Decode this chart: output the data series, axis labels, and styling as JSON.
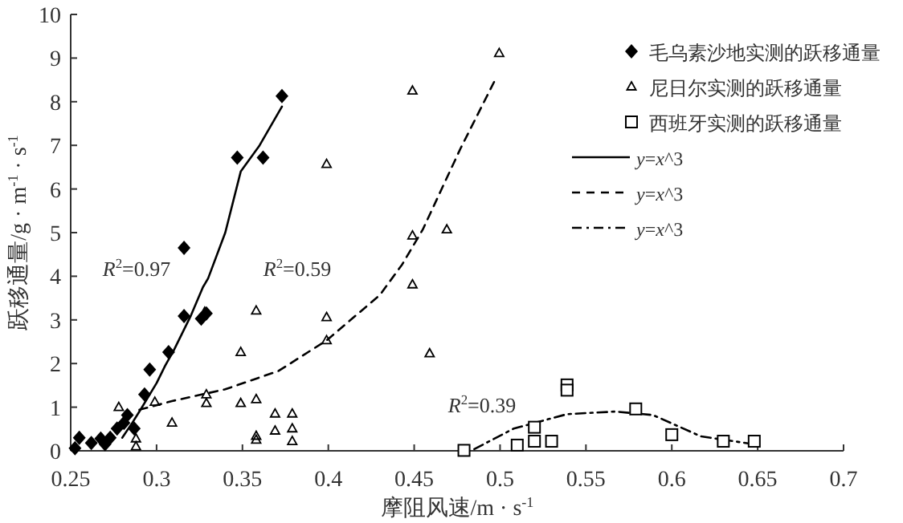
{
  "chart_data": {
    "type": "scatter",
    "xlabel": "摩阻风速/m · s$^{-1}$",
    "ylabel": "跃移通量/g · m$^{-1}$ · s$^{-1}$",
    "xlim": [
      0.25,
      0.7
    ],
    "ylim": [
      0,
      10
    ],
    "xticks": [
      0.25,
      0.3,
      0.35,
      0.4,
      0.45,
      0.5,
      0.55,
      0.6,
      0.65,
      0.7
    ],
    "yticks": [
      0,
      1,
      2,
      3,
      4,
      5,
      6,
      7,
      8,
      9,
      10
    ],
    "legend": "top right",
    "grid": false,
    "annotations": [
      "*R*$^{2}$=0.97",
      "*R*$^{2}$=0.59",
      "*R*$^{2}$=0.39"
    ],
    "series": [
      {
        "name": "毛乌素沙地实测的跃移通量",
        "type": "scatter",
        "marker": "diamond",
        "color": "#000000",
        "x": [
          0.2525,
          0.255,
          0.262,
          0.2675,
          0.27,
          0.273,
          0.277,
          0.281,
          0.283,
          0.287,
          0.293,
          0.296,
          0.307,
          0.316,
          0.326,
          0.329,
          0.316,
          0.347,
          0.362,
          0.373
        ],
        "values": [
          0.06,
          0.3,
          0.18,
          0.28,
          0.15,
          0.3,
          0.51,
          0.64,
          0.82,
          0.51,
          1.29,
          1.86,
          2.26,
          3.09,
          3.03,
          3.15,
          4.65,
          6.72,
          6.72,
          8.13
        ]
      },
      {
        "name": "尼日尔实测的跃移通量",
        "type": "scatter",
        "marker": "triangle",
        "color": "#000000",
        "x": [
          0.278,
          0.288,
          0.288,
          0.299,
          0.309,
          0.329,
          0.329,
          0.328,
          0.349,
          0.349,
          0.358,
          0.358,
          0.358,
          0.358,
          0.369,
          0.369,
          0.379,
          0.379,
          0.379,
          0.399,
          0.399,
          0.399,
          0.4995,
          0.449,
          0.449,
          0.469,
          0.449,
          0.459
        ],
        "values": [
          1.0,
          0.28,
          0.1,
          1.12,
          0.64,
          1.29,
          1.09,
          3.18,
          2.26,
          1.09,
          3.21,
          1.18,
          0.34,
          0.25,
          0.85,
          0.46,
          0.85,
          0.51,
          0.22,
          6.57,
          3.06,
          2.53,
          9.11,
          8.25,
          4.93,
          5.07,
          3.81,
          2.23
        ]
      },
      {
        "name": "西班牙实测的跃移通量",
        "type": "scatter",
        "marker": "square",
        "color": "#000000",
        "x": [
          0.479,
          0.51,
          0.52,
          0.53,
          0.52,
          0.539,
          0.539,
          0.579,
          0.6,
          0.63,
          0.648
        ],
        "values": [
          0.01,
          0.13,
          0.22,
          0.22,
          0.54,
          1.51,
          1.39,
          0.96,
          0.37,
          0.22,
          0.22
        ]
      },
      {
        "name": "*y*=*x*^3",
        "type": "line",
        "line_style": "solid",
        "marker": "none",
        "color": "#000000",
        "x": [
          0.28,
          0.286,
          0.29,
          0.3,
          0.305,
          0.31,
          0.32,
          0.327,
          0.33,
          0.34,
          0.349,
          0.36,
          0.373
        ],
        "values": [
          0.3,
          0.65,
          0.9,
          1.55,
          1.95,
          2.3,
          3.1,
          3.75,
          3.95,
          5.0,
          6.4,
          7.0,
          7.89
        ]
      },
      {
        "name": "*y*=*x*^3",
        "type": "line",
        "line_style": "dashed",
        "marker": "none",
        "color": "#000000",
        "x": [
          0.29,
          0.309,
          0.34,
          0.371,
          0.399,
          0.43,
          0.443,
          0.455,
          0.477,
          0.497
        ],
        "values": [
          0.94,
          1.14,
          1.41,
          1.83,
          2.53,
          3.57,
          4.27,
          5.07,
          6.93,
          8.49
        ]
      },
      {
        "name": "*y*=*x*^3",
        "type": "line",
        "line_style": "dashdot",
        "marker": "none",
        "color": "#000000",
        "x": [
          0.485,
          0.508,
          0.539,
          0.567,
          0.589,
          0.617,
          0.648
        ],
        "values": [
          0.04,
          0.51,
          0.84,
          0.9,
          0.82,
          0.33,
          0.15
        ]
      }
    ]
  }
}
